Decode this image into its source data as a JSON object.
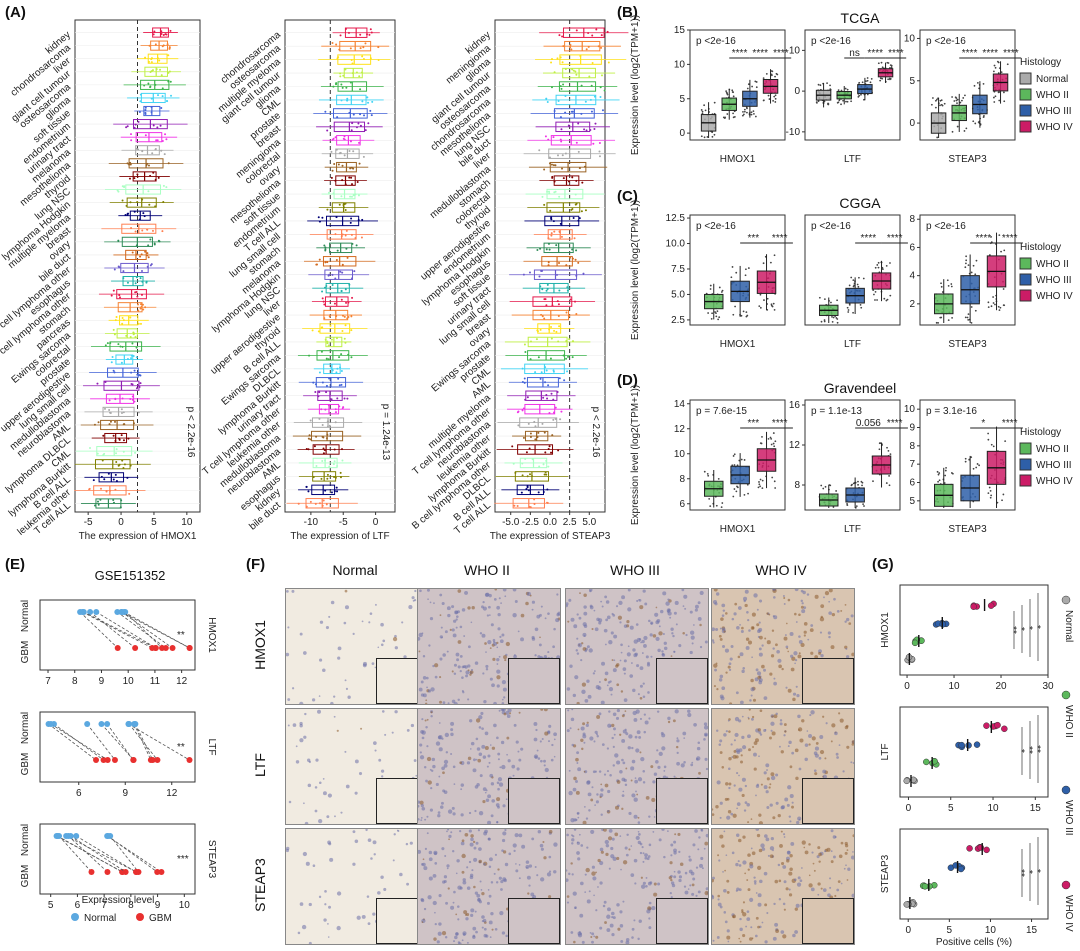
{
  "panels": {
    "A": {
      "letter": "(A)",
      "subplots": [
        {
          "xlabel": "The expression of HMOX1",
          "pvalue": "p < 2.2e-16",
          "ticks": [
            "-5",
            "0",
            "5",
            "10"
          ],
          "categories": [
            "kidney",
            "chondrosarcoma",
            "liver",
            "giant cell tumour",
            "osteosarcoma",
            "glioma",
            "soft tissue",
            "endometrium",
            "urinary tract",
            "melanoma",
            "mesothelioma",
            "thyroid",
            "lung NSC",
            "lymphoma Hodgkin",
            "multiple myeloma",
            "breast",
            "ovary",
            "bile duct",
            "T cell lymphoma other",
            "esophagus",
            "B cell lymphoma other",
            "stomach",
            "pancreas",
            "Ewings sarcoma",
            "colorectal",
            "prostate",
            "upper aerodigestive",
            "lung small cell",
            "medulloblastoma",
            "neuroblastoma",
            "AML",
            "lymphoma DLBCL",
            "CML",
            "lymphoma Burkitt",
            "B cell ALL",
            "leukemia other",
            "T cell ALL"
          ]
        },
        {
          "xlabel": "The expression of LTF",
          "pvalue": "p = 1.24e-13",
          "ticks": [
            "-10",
            "-5",
            "0"
          ],
          "categories": [
            "chondrosarcoma",
            "osteosarcoma",
            "multiple myeloma",
            "giant cell tumour",
            "glioma",
            "CML",
            "prostate",
            "breast",
            "meningioma",
            "colorectal",
            "ovary",
            "mesothelioma",
            "soft tissue",
            "endometrium",
            "T cell ALL",
            "lung small cell",
            "stomach",
            "melanoma",
            "lymphoma Hodgkin",
            "lung NSC",
            "liver",
            "upper aerodigestive",
            "thyroid",
            "B cell ALL",
            "Ewings sarcoma",
            "DLBCL",
            "lymphoma Burkitt",
            "urinary tract",
            "T cell lymphoma other",
            "leukemia other",
            "medulloblastoma",
            "neuroblastoma",
            "AML",
            "esophagus",
            "kidney",
            "bile duct"
          ]
        },
        {
          "xlabel": "The expression of STEAP3",
          "pvalue": "p < 2.2e-16",
          "ticks": [
            "-5.0",
            "-2.5",
            "0.0",
            "2.5",
            "5.0"
          ],
          "categories": [
            "kidney",
            "meningioma",
            "glioma",
            "giant cell tumour",
            "osteosarcoma",
            "chondrosarcoma",
            "mesothelioma",
            "lung NSC",
            "bile duct",
            "liver",
            "medulloblastoma",
            "stomach",
            "colorectal",
            "thyroid",
            "upper aerodigestive",
            "endometrium",
            "lymphoma Hodgkin",
            "esophagus",
            "soft tissue",
            "urinary tract",
            "lung small cell",
            "breast",
            "ovary",
            "Ewings sarcoma",
            "prostate",
            "CML",
            "AML",
            "multiple myeloma",
            "T cell lymphoma other",
            "neuroblastoma",
            "leukemia other",
            "lymphoma Burkitt",
            "B cell lymphoma other",
            "DLBCL",
            "B cell ALL",
            "T cell ALL"
          ]
        }
      ]
    },
    "B": {
      "letter": "(B)",
      "title": "TCGA",
      "ylabel": "Expression level (log2(TPM+1))",
      "genes": [
        {
          "name": "HMOX1",
          "p": "p <2e-16",
          "ticks": [
            "0",
            "5",
            "10",
            "15"
          ],
          "sig": [
            "****",
            "****",
            "****"
          ]
        },
        {
          "name": "LTF",
          "p": "p <2e-16",
          "ticks": [
            "-10",
            "0",
            "10"
          ],
          "sig": [
            "ns",
            "****",
            "****"
          ]
        },
        {
          "name": "STEAP3",
          "p": "p <2e-16",
          "ticks": [
            "0",
            "5",
            "10"
          ],
          "sig": [
            "****",
            "****",
            "****"
          ]
        }
      ],
      "legend_title": "Histology",
      "legend": [
        "Normal",
        "WHO II",
        "WHO III",
        "WHO IV"
      ]
    },
    "C": {
      "letter": "(C)",
      "title": "CGGA",
      "ylabel": "Expression level (log2(TPM+1))",
      "genes": [
        {
          "name": "HMOX1",
          "p": "p <2e-16",
          "ticks": [
            "2.5",
            "5.0",
            "7.5",
            "10.0",
            "12.5"
          ],
          "sig": [
            "***",
            "****"
          ]
        },
        {
          "name": "LTF",
          "p": "p <2e-16",
          "ticks": [],
          "sig": [
            "****",
            "****"
          ]
        },
        {
          "name": "STEAP3",
          "p": "p <2e-16",
          "ticks": [
            "2",
            "4",
            "6",
            "8"
          ],
          "sig": [
            "****",
            "****"
          ]
        }
      ],
      "legend_title": "Histology",
      "legend": [
        "WHO II",
        "WHO III",
        "WHO IV"
      ]
    },
    "D": {
      "letter": "(D)",
      "title": "Gravendeel",
      "ylabel": "Expression level (log2(TPM+1))",
      "genes": [
        {
          "name": "HMOX1",
          "p": "p = 7.6e-15",
          "ticks": [
            "6",
            "8",
            "10",
            "12",
            "14"
          ],
          "sig": [
            "***",
            "****"
          ]
        },
        {
          "name": "LTF",
          "p": "p = 1.1e-13",
          "ticks": [
            "8",
            "12",
            "16"
          ],
          "sig": [
            "0.056",
            "****"
          ]
        },
        {
          "name": "STEAP3",
          "p": "p = 3.1e-16",
          "ticks": [
            "5",
            "6",
            "7",
            "8",
            "9",
            "10"
          ],
          "sig": [
            "*",
            "****"
          ]
        }
      ],
      "legend_title": "Histology",
      "legend": [
        "WHO II",
        "WHO III",
        "WHO IV"
      ]
    },
    "E": {
      "letter": "(E)",
      "title": "GSE151352",
      "ylabels": [
        "Normal",
        "GBM"
      ],
      "genes": [
        {
          "name": "HMOX1",
          "sig": "**",
          "ticks": [
            "7",
            "8",
            "9",
            "10",
            "11",
            "12"
          ]
        },
        {
          "name": "LTF",
          "sig": "**",
          "ticks": [
            "6",
            "9",
            "12"
          ]
        },
        {
          "name": "STEAP3",
          "sig": "***",
          "ticks": [
            "5",
            "6",
            "7",
            "8",
            "9",
            "10"
          ]
        }
      ],
      "xlabel": "Expression level",
      "legend": [
        "Normal",
        "GBM"
      ]
    },
    "F": {
      "letter": "(F)",
      "columns": [
        "Normal",
        "WHO II",
        "WHO III",
        "WHO IV"
      ],
      "rows": [
        "HMOX1",
        "LTF",
        "STEAP3"
      ]
    },
    "G": {
      "letter": "(G)",
      "rows": [
        {
          "name": "HMOX1",
          "ticks": [
            "0",
            "10",
            "20",
            "30"
          ],
          "sig": [
            "*",
            "*",
            "*",
            "**"
          ]
        },
        {
          "name": "LTF",
          "ticks": [
            "0",
            "5",
            "10",
            "15"
          ],
          "sig": [
            "**",
            "**",
            "*"
          ]
        },
        {
          "name": "STEAP3",
          "ticks": [
            "0",
            "5",
            "10",
            "15"
          ],
          "sig": [
            "*",
            "*",
            "**"
          ]
        }
      ],
      "xlabel": "Positive cells (%)",
      "legend": [
        "Normal",
        "WHO II",
        "WHO III",
        "WHO IV"
      ]
    }
  },
  "colors": {
    "normal": "#aaaaaa",
    "who2": "#5cb85c",
    "who3": "#2e5fa8",
    "who4": "#cc1c66",
    "gbm": "#e8302f",
    "normal_e": "#5ba8e0"
  }
}
